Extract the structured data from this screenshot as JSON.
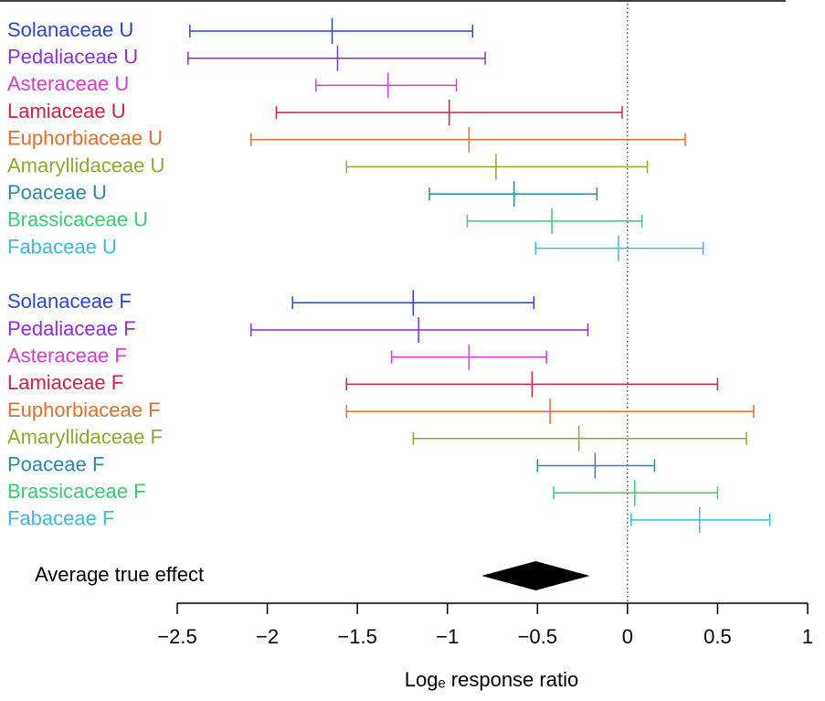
{
  "chart_data": {
    "type": "forest",
    "x_label": "Logₑ response ratio",
    "xlim": [
      -2.5,
      1
    ],
    "xticks": [
      {
        "value": -2.5,
        "label": "−2.5"
      },
      {
        "value": -2,
        "label": "−2"
      },
      {
        "value": -1.5,
        "label": "−1.5"
      },
      {
        "value": -1,
        "label": "−1"
      },
      {
        "value": -0.5,
        "label": "−0.5"
      },
      0,
      0.5,
      1
    ],
    "reference_line": 0,
    "groups": [
      {
        "rows": [
          {
            "label": "Solanaceae U",
            "color": "#2a45d6",
            "estimate": -1.64,
            "lower": -2.43,
            "upper": -0.86
          },
          {
            "label": "Pedaliaceae U",
            "color": "#8a2fdc",
            "estimate": -1.61,
            "lower": -2.44,
            "upper": -0.79
          },
          {
            "label": "Asteraceae U",
            "color": "#d63ccd",
            "estimate": -1.33,
            "lower": -1.73,
            "upper": -0.95
          },
          {
            "label": "Lamiaceae U",
            "color": "#d21f46",
            "estimate": -0.99,
            "lower": -1.95,
            "upper": -0.03
          },
          {
            "label": "Euphorbiaceae U",
            "color": "#dd7030",
            "estimate": -0.88,
            "lower": -2.09,
            "upper": 0.32
          },
          {
            "label": "Amaryllidaceae U",
            "color": "#93a62e",
            "estimate": -0.73,
            "lower": -1.56,
            "upper": 0.11
          },
          {
            "label": "Poaceae U",
            "color": "#2a8a9c",
            "estimate": -0.63,
            "lower": -1.1,
            "upper": -0.17
          },
          {
            "label": "Brassicaceae U",
            "color": "#38cc6e",
            "estimate": -0.42,
            "lower": -0.89,
            "upper": 0.08
          },
          {
            "label": "Fabaceae U",
            "color": "#3bbcd6",
            "estimate": -0.05,
            "lower": -0.51,
            "upper": 0.42
          }
        ]
      },
      {
        "rows": [
          {
            "label": "Solanaceae F",
            "color": "#2a45d6",
            "estimate": -1.19,
            "lower": -1.86,
            "upper": -0.52
          },
          {
            "label": "Pedaliaceae F",
            "color": "#8a2fdc",
            "estimate": -1.16,
            "lower": -2.09,
            "upper": -0.22
          },
          {
            "label": "Asteraceae F",
            "color": "#d63ccd",
            "estimate": -0.88,
            "lower": -1.31,
            "upper": -0.45
          },
          {
            "label": "Lamiaceae F",
            "color": "#d21f46",
            "estimate": -0.53,
            "lower": -1.56,
            "upper": 0.5
          },
          {
            "label": "Euphorbiaceae F",
            "color": "#dd7030",
            "estimate": -0.43,
            "lower": -1.56,
            "upper": 0.7
          },
          {
            "label": "Amaryllidaceae F",
            "color": "#93a62e",
            "estimate": -0.27,
            "lower": -1.19,
            "upper": 0.66
          },
          {
            "label": "Poaceae F",
            "color": "#2a8a9c",
            "estimate": -0.18,
            "lower": -0.5,
            "upper": 0.15
          },
          {
            "label": "Brassicaceae F",
            "color": "#38cc6e",
            "estimate": 0.04,
            "lower": -0.41,
            "upper": 0.5
          },
          {
            "label": "Fabaceae F",
            "color": "#3bbcd6",
            "estimate": 0.4,
            "lower": 0.02,
            "upper": 0.79
          }
        ]
      }
    ],
    "summary": {
      "label": "Average true effect",
      "estimate": -0.51,
      "lower": -0.81,
      "upper": -0.21
    }
  }
}
